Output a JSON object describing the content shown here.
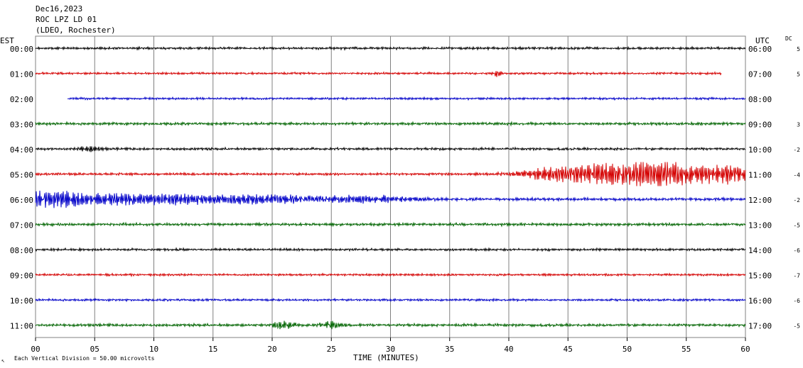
{
  "header": {
    "date": "Dec16,2023",
    "station": "ROC LPZ LD 01",
    "network": "(LDEO, Rochester)"
  },
  "labels": {
    "left_timezone": "EST",
    "right_timezone": "UTC",
    "dc_header": "DC",
    "footer_marker": "↖",
    "scale_note": "Each Vertical Division =   50.00 microvolts"
  },
  "colors": {
    "black": "#000000",
    "red": "#d40000",
    "blue": "#0000c8",
    "green": "#006400",
    "grid": "#808080"
  },
  "chart_data": {
    "type": "line",
    "title": "ROC LPZ LD 01",
    "xlabel": "TIME (MINUTES)",
    "ylabel": "",
    "xlim": [
      0,
      60
    ],
    "x_ticks": [
      "00",
      "05",
      "10",
      "15",
      "20",
      "25",
      "30",
      "35",
      "40",
      "45",
      "50",
      "55",
      "60"
    ],
    "grid": true,
    "scale_microvolts_per_division": 50.0,
    "traces": [
      {
        "est": "00:00",
        "utc": "06:00",
        "dc": "5",
        "color": "black",
        "start_min": 0,
        "end_min": 60,
        "noise": 1.0,
        "bursts": []
      },
      {
        "est": "01:00",
        "utc": "07:00",
        "dc": "5",
        "color": "red",
        "start_min": 0,
        "end_min": 58,
        "noise": 0.9,
        "bursts": [
          {
            "center_min": 39,
            "width_min": 0.3,
            "amplitude": 2.5
          }
        ]
      },
      {
        "est": "02:00",
        "utc": "08:00",
        "dc": "",
        "color": "blue",
        "start_min": 2.7,
        "end_min": 60,
        "noise": 0.9,
        "bursts": []
      },
      {
        "est": "03:00",
        "utc": "09:00",
        "dc": "3",
        "color": "green",
        "start_min": 0,
        "end_min": 60,
        "noise": 1.1,
        "bursts": []
      },
      {
        "est": "04:00",
        "utc": "10:00",
        "dc": "-2",
        "color": "black",
        "start_min": 0,
        "end_min": 60,
        "noise": 1.0,
        "bursts": [
          {
            "center_min": 4.5,
            "width_min": 1.0,
            "amplitude": 1.6
          }
        ]
      },
      {
        "est": "05:00",
        "utc": "11:00",
        "dc": "-4",
        "color": "red",
        "start_min": 0,
        "end_min": 60,
        "noise": 1.0,
        "bursts": [
          {
            "center_min": 44,
            "width_min": 3.0,
            "amplitude": 4.0
          },
          {
            "center_min": 48,
            "width_min": 3.0,
            "amplitude": 5.5
          },
          {
            "center_min": 52,
            "width_min": 2.5,
            "amplitude": 8.0
          },
          {
            "center_min": 56,
            "width_min": 3.0,
            "amplitude": 5.0
          },
          {
            "center_min": 59,
            "width_min": 2.0,
            "amplitude": 4.0
          }
        ]
      },
      {
        "est": "06:00",
        "utc": "12:00",
        "dc": "-2",
        "color": "blue",
        "start_min": 0,
        "end_min": 60,
        "noise": 1.2,
        "bursts": [
          {
            "center_min": 0.8,
            "width_min": 2.5,
            "amplitude": 5.0
          },
          {
            "center_min": 5,
            "width_min": 4.0,
            "amplitude": 3.0
          },
          {
            "center_min": 12,
            "width_min": 5.0,
            "amplitude": 3.0
          },
          {
            "center_min": 20,
            "width_min": 4.0,
            "amplitude": 2.5
          },
          {
            "center_min": 28,
            "width_min": 4.0,
            "amplitude": 2.0
          }
        ]
      },
      {
        "est": "07:00",
        "utc": "13:00",
        "dc": "-5",
        "color": "green",
        "start_min": 0,
        "end_min": 60,
        "noise": 1.1,
        "bursts": []
      },
      {
        "est": "08:00",
        "utc": "14:00",
        "dc": "-6",
        "color": "black",
        "start_min": 0,
        "end_min": 60,
        "noise": 1.0,
        "bursts": []
      },
      {
        "est": "09:00",
        "utc": "15:00",
        "dc": "-7",
        "color": "red",
        "start_min": 0,
        "end_min": 60,
        "noise": 0.9,
        "bursts": []
      },
      {
        "est": "10:00",
        "utc": "16:00",
        "dc": "-6",
        "color": "blue",
        "start_min": 0,
        "end_min": 60,
        "noise": 0.9,
        "bursts": []
      },
      {
        "est": "11:00",
        "utc": "17:00",
        "dc": "-5",
        "color": "green",
        "start_min": 0,
        "end_min": 60,
        "noise": 1.1,
        "bursts": [
          {
            "center_min": 21,
            "width_min": 0.8,
            "amplitude": 3.0
          },
          {
            "center_min": 25,
            "width_min": 0.8,
            "amplitude": 2.5
          }
        ]
      }
    ]
  }
}
